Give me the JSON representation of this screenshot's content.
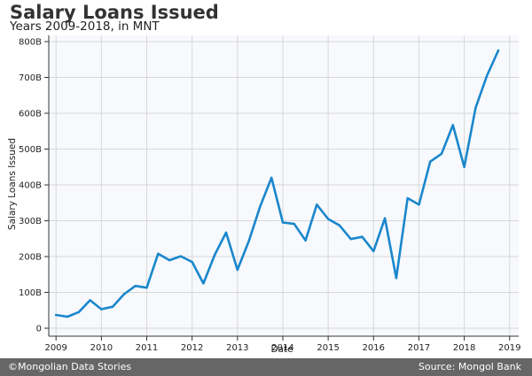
{
  "header": {
    "title": "Salary Loans Issued",
    "subtitle": "Years 2009-2018, in MNT"
  },
  "footer": {
    "copyright": "©Mongolian Data Stories",
    "source": "Source: Mongol Bank"
  },
  "colors": {
    "line": "#1a87cd",
    "grid": "#d8d8d8",
    "plot_background": "#f7f9fc",
    "footer_background": "#666666"
  },
  "chart_data": {
    "type": "line",
    "title": "Salary Loans Issued",
    "subtitle": "Years 2009-2018, in MNT",
    "xlabel": "Date",
    "ylabel": "Salary Loans Issued",
    "xlim": [
      2008.84,
      2019.2
    ],
    "ylim": [
      0,
      800
    ],
    "grid": true,
    "x_ticks": [
      2009,
      2010,
      2011,
      2012,
      2013,
      2014,
      2015,
      2016,
      2017,
      2018,
      2019
    ],
    "x_tick_labels": [
      "2009",
      "2010",
      "2011",
      "2012",
      "2013",
      "2014",
      "2015",
      "2016",
      "2017",
      "2018",
      "2019"
    ],
    "y_ticks": [
      0,
      100,
      200,
      300,
      400,
      500,
      600,
      700,
      800
    ],
    "y_tick_labels": [
      "0",
      "100B",
      "200B",
      "300B",
      "400B",
      "500B",
      "600B",
      "700B",
      "800B"
    ],
    "series": [
      {
        "x": [
          2009.0,
          2009.25,
          2009.5,
          2009.75,
          2010.0,
          2010.25,
          2010.5,
          2010.75,
          2011.0,
          2011.25,
          2011.5,
          2011.75,
          2012.0,
          2012.25,
          2012.5,
          2012.75,
          2013.0,
          2013.25,
          2013.5,
          2013.75,
          2014.0,
          2014.25,
          2014.5,
          2014.75,
          2015.0,
          2015.25,
          2015.5,
          2015.75,
          2016.0,
          2016.25,
          2016.5,
          2016.75,
          2017.0,
          2017.25,
          2017.5,
          2017.75,
          2018.0,
          2018.25,
          2018.5,
          2018.75
        ],
        "values": [
          37,
          32,
          45,
          78,
          53,
          60,
          95,
          118,
          113,
          208,
          190,
          201,
          185,
          125,
          205,
          267,
          163,
          243,
          340,
          420,
          295,
          291,
          245,
          345,
          305,
          287,
          249,
          255,
          215,
          307,
          140,
          363,
          345,
          465,
          487,
          567,
          450,
          615,
          705,
          775
        ]
      }
    ]
  }
}
